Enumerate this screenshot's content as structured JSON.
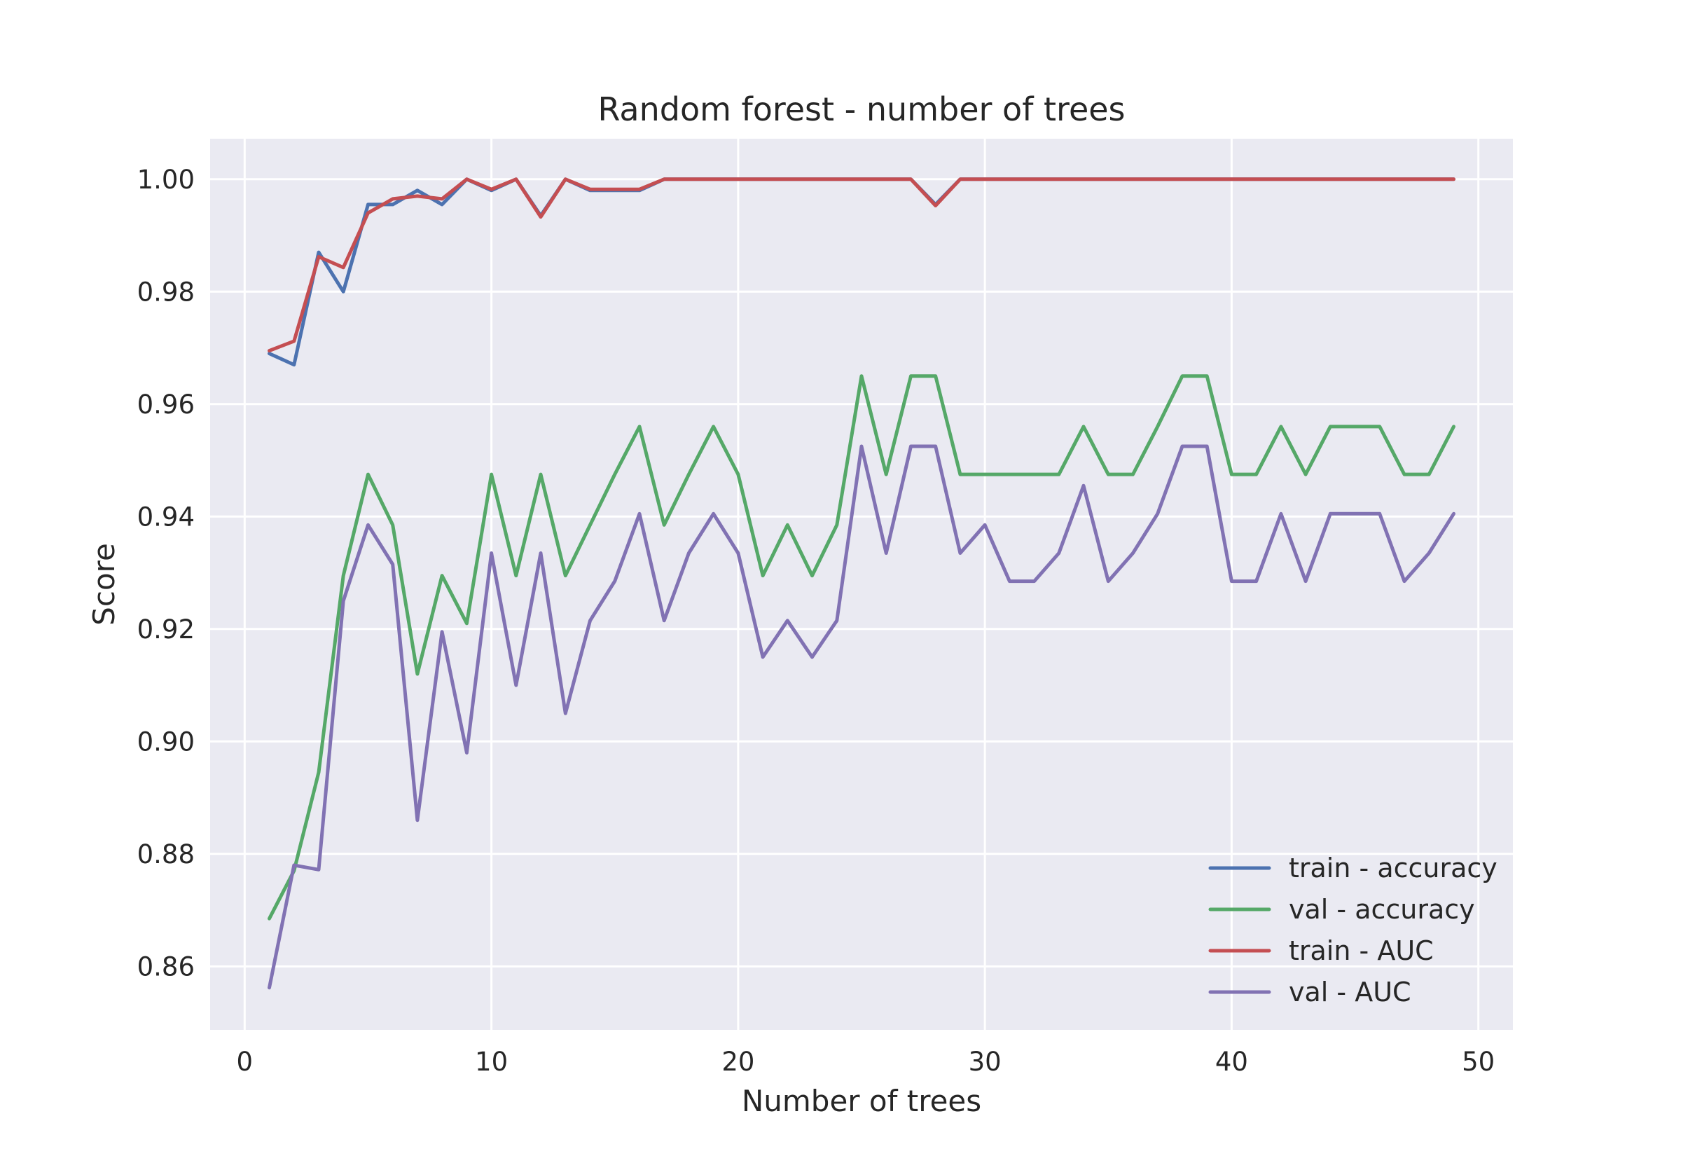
{
  "chart_data": {
    "type": "line",
    "title": "Random forest - number of trees",
    "xlabel": "Number of trees",
    "ylabel": "Score",
    "xlim": [
      -1.4,
      51.4
    ],
    "ylim": [
      0.8487,
      1.0072
    ],
    "xticks": [
      0,
      10,
      20,
      30,
      40,
      50
    ],
    "xtick_labels": [
      "0",
      "10",
      "20",
      "30",
      "40",
      "50"
    ],
    "yticks": [
      0.86,
      0.88,
      0.9,
      0.92,
      0.94,
      0.96,
      0.98,
      1.0
    ],
    "ytick_labels": [
      "0.86",
      "0.88",
      "0.90",
      "0.92",
      "0.94",
      "0.96",
      "0.98",
      "1.00"
    ],
    "grid": true,
    "legend_position": "lower-right",
    "x": [
      1,
      2,
      3,
      4,
      5,
      6,
      7,
      8,
      9,
      10,
      11,
      12,
      13,
      14,
      15,
      16,
      17,
      18,
      19,
      20,
      21,
      22,
      23,
      24,
      25,
      26,
      27,
      28,
      29,
      30,
      31,
      32,
      33,
      34,
      35,
      36,
      37,
      38,
      39,
      40,
      41,
      42,
      43,
      44,
      45,
      46,
      47,
      48,
      49
    ],
    "series": [
      {
        "name": "train - accuracy",
        "color": "#4c72b0",
        "values": [
          0.969,
          0.967,
          0.987,
          0.98,
          0.9955,
          0.9955,
          0.998,
          0.9955,
          1.0,
          0.998,
          1.0,
          0.9935,
          1.0,
          0.998,
          0.998,
          0.998,
          1.0,
          1.0,
          1.0,
          1.0,
          1.0,
          1.0,
          1.0,
          1.0,
          1.0,
          1.0,
          1.0,
          0.9955,
          1.0,
          1.0,
          1.0,
          1.0,
          1.0,
          1.0,
          1.0,
          1.0,
          1.0,
          1.0,
          1.0,
          1.0,
          1.0,
          1.0,
          1.0,
          1.0,
          1.0,
          1.0,
          1.0,
          1.0,
          1.0
        ]
      },
      {
        "name": "val - accuracy",
        "color": "#55a868",
        "values": [
          0.8685,
          0.877,
          0.8945,
          0.9295,
          0.9475,
          0.9385,
          0.912,
          0.9295,
          0.921,
          0.9475,
          0.9295,
          0.9475,
          0.9295,
          0.9385,
          0.9475,
          0.956,
          0.9385,
          0.9475,
          0.956,
          0.9475,
          0.9295,
          0.9385,
          0.9295,
          0.9385,
          0.965,
          0.9475,
          0.965,
          0.965,
          0.9475,
          0.9475,
          0.9475,
          0.9475,
          0.9475,
          0.956,
          0.9475,
          0.9475,
          0.956,
          0.965,
          0.965,
          0.9475,
          0.9475,
          0.956,
          0.9475,
          0.956,
          0.956,
          0.956,
          0.9475,
          0.9475,
          0.956
        ]
      },
      {
        "name": "train - AUC",
        "color": "#c44e52",
        "values": [
          0.9695,
          0.9712,
          0.9862,
          0.9843,
          0.994,
          0.9965,
          0.997,
          0.9965,
          1.0,
          0.9982,
          1.0,
          0.9933,
          1.0,
          0.9982,
          0.9982,
          0.9982,
          1.0,
          1.0,
          1.0,
          1.0,
          1.0,
          1.0,
          1.0,
          1.0,
          1.0,
          1.0,
          1.0,
          0.9953,
          1.0,
          1.0,
          1.0,
          1.0,
          1.0,
          1.0,
          1.0,
          1.0,
          1.0,
          1.0,
          1.0,
          1.0,
          1.0,
          1.0,
          1.0,
          1.0,
          1.0,
          1.0,
          1.0,
          1.0,
          1.0
        ]
      },
      {
        "name": "val - AUC",
        "color": "#8172b3",
        "values": [
          0.8562,
          0.878,
          0.8772,
          0.925,
          0.9385,
          0.9315,
          0.886,
          0.9195,
          0.898,
          0.9335,
          0.91,
          0.9335,
          0.905,
          0.9215,
          0.9285,
          0.9405,
          0.9215,
          0.9335,
          0.9405,
          0.9335,
          0.915,
          0.9215,
          0.915,
          0.9215,
          0.9525,
          0.9335,
          0.9525,
          0.9525,
          0.9335,
          0.9385,
          0.9285,
          0.9285,
          0.9335,
          0.9455,
          0.9285,
          0.9335,
          0.9405,
          0.9525,
          0.9525,
          0.9285,
          0.9285,
          0.9405,
          0.9285,
          0.9405,
          0.9405,
          0.9405,
          0.9285,
          0.9335,
          0.9405
        ]
      }
    ],
    "style": {
      "plot_background": "#eaeaf2",
      "grid_color": "#ffffff"
    }
  }
}
